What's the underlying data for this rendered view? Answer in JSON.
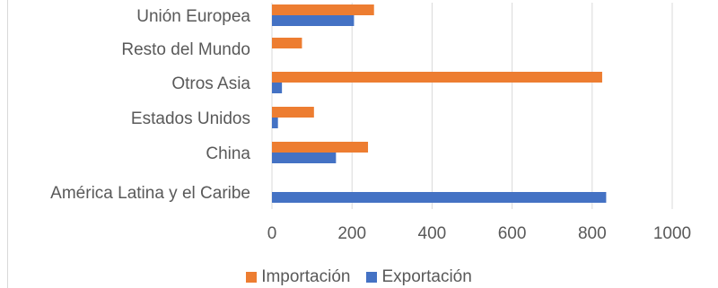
{
  "chart_data": {
    "type": "bar",
    "orientation": "horizontal",
    "categories": [
      "América Latina y el Caribe",
      "China",
      "Estados Unidos",
      "Otros Asia",
      "Resto del Mundo",
      "Unión Europea"
    ],
    "series": [
      {
        "name": "Exportación",
        "color": "#4472C4",
        "values": [
          835,
          160,
          15,
          25,
          0,
          205
        ]
      },
      {
        "name": "Importación",
        "color": "#ED7D31",
        "values": [
          0,
          240,
          105,
          825,
          75,
          255
        ]
      }
    ],
    "xlim": [
      0,
      1000
    ],
    "xticks": [
      "0",
      "200",
      "400",
      "600",
      "800",
      "1000"
    ],
    "grid": true,
    "legend_position": "bottom"
  }
}
